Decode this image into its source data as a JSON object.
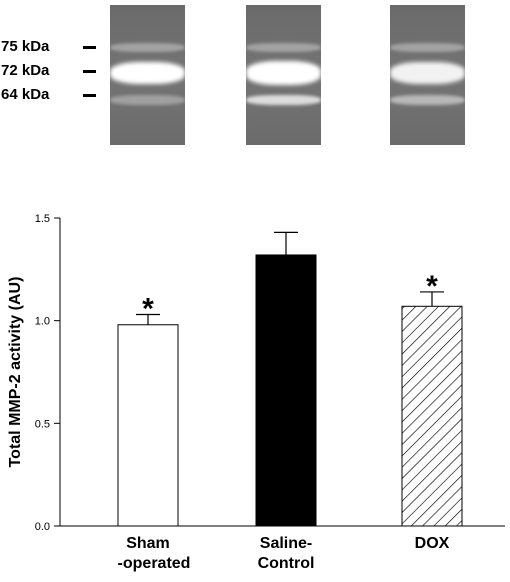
{
  "gel": {
    "markers": [
      {
        "label": "75 kDa",
        "kda": 75
      },
      {
        "label": "72 kDa",
        "kda": 72
      },
      {
        "label": "64 kDa",
        "kda": 64
      }
    ],
    "lanes": [
      "Sham-operated",
      "Saline-Control",
      "DOX"
    ],
    "colors": {
      "lane_bg": "#6d6d6d",
      "band": "#ffffff"
    }
  },
  "chart_data": {
    "type": "bar",
    "categories": [
      "Sham\n-operated",
      "Saline-\nControl",
      "DOX"
    ],
    "values": [
      0.98,
      1.32,
      1.07
    ],
    "errors": [
      0.05,
      0.11,
      0.07
    ],
    "significance": [
      "*",
      "",
      "*"
    ],
    "fills": [
      "white",
      "black",
      "hatched"
    ],
    "ylabel": "Total MMP-2 activity (AU)",
    "ylim": [
      0.0,
      1.5
    ],
    "yticks": [
      0.0,
      0.5,
      1.0,
      1.5
    ],
    "ytick_labels": [
      "0.0",
      "0.5",
      "1.0",
      "1.5"
    ],
    "grid": false
  }
}
